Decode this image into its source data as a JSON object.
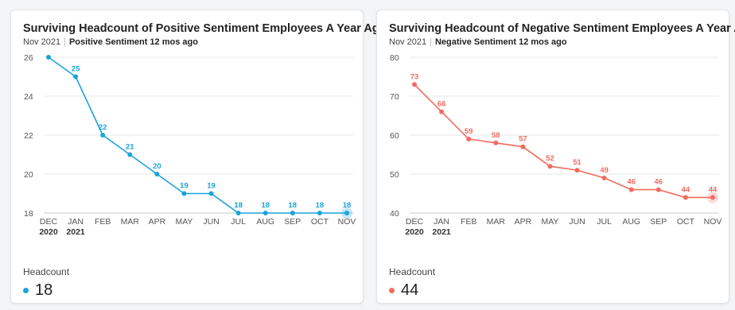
{
  "chart_data": [
    {
      "type": "line",
      "title": "Surviving Headcount of Positive Sentiment Employees A Year Ago",
      "subtitle_period": "Nov 2021",
      "subtitle_label": "Positive Sentiment 12 mos ago",
      "categories": [
        "DEC",
        "JAN",
        "FEB",
        "MAR",
        "APR",
        "MAY",
        "JUN",
        "JUL",
        "AUG",
        "SEP",
        "OCT",
        "NOV"
      ],
      "year_labels": [
        "2020",
        "2021",
        "",
        "",
        "",
        "",
        "",
        "",
        "",
        "",
        "",
        ""
      ],
      "series": [
        {
          "values": [
            26,
            25,
            22,
            21,
            20,
            19,
            19,
            18,
            18,
            18,
            18,
            18
          ]
        }
      ],
      "data_labels": [
        "",
        "25",
        "22",
        "21",
        "20",
        "19",
        "19",
        "18",
        "18",
        "18",
        "18",
        "18"
      ],
      "yticks": [
        18,
        20,
        22,
        24,
        26
      ],
      "ylim": [
        18,
        26
      ],
      "color": "#1ba3db",
      "legend_label": "Headcount",
      "legend_value": "18"
    },
    {
      "type": "line",
      "title": "Surviving Headcount of Negative Sentiment Employees A Year Ago",
      "subtitle_period": "Nov 2021",
      "subtitle_label": "Negative Sentiment 12 mos ago",
      "categories": [
        "DEC",
        "JAN",
        "FEB",
        "MAR",
        "APR",
        "MAY",
        "JUN",
        "JUL",
        "AUG",
        "SEP",
        "OCT",
        "NOV"
      ],
      "year_labels": [
        "2020",
        "2021",
        "",
        "",
        "",
        "",
        "",
        "",
        "",
        "",
        "",
        ""
      ],
      "series": [
        {
          "values": [
            73,
            66,
            59,
            58,
            57,
            52,
            51,
            49,
            46,
            46,
            44,
            44
          ]
        }
      ],
      "data_labels": [
        "73",
        "66",
        "59",
        "58",
        "57",
        "52",
        "51",
        "49",
        "46",
        "46",
        "44",
        "44"
      ],
      "yticks": [
        40,
        50,
        60,
        70,
        80
      ],
      "ylim": [
        40,
        80
      ],
      "color": "#f26b5e",
      "legend_label": "Headcount",
      "legend_value": "44"
    }
  ]
}
